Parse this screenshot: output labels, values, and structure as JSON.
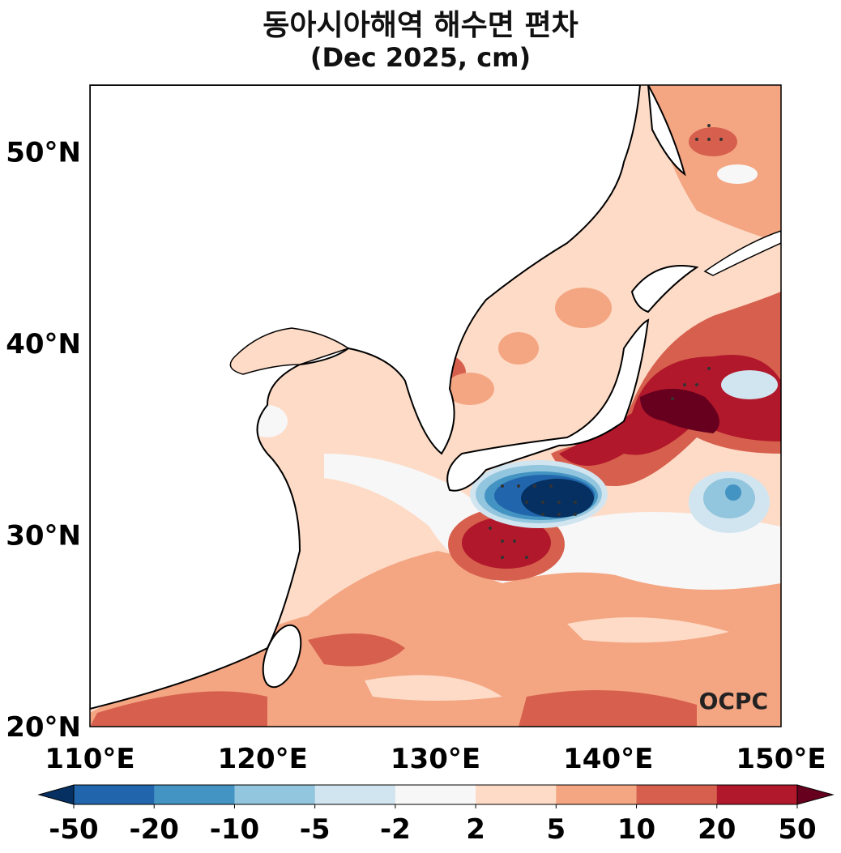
{
  "title": "동아시아해역 해수면 편차",
  "subtitle": "(Dec 2025, cm)",
  "logo": "OCPC",
  "axes": {
    "y_ticks": [
      "20°N",
      "30°N",
      "40°N",
      "50°N"
    ],
    "x_ticks": [
      "110°E",
      "120°E",
      "130°E",
      "140°E",
      "150°E"
    ]
  },
  "colorbar": {
    "labels": [
      "-50",
      "-20",
      "-10",
      "-5",
      "-2",
      "2",
      "5",
      "10",
      "20",
      "50"
    ],
    "colors": [
      "#2166ac",
      "#4393c3",
      "#92c5de",
      "#d1e5f0",
      "#f7f7f7",
      "#fddbc7",
      "#f4a582",
      "#d6604d",
      "#b2182b"
    ],
    "under": "#053061",
    "over": "#67001f"
  }
}
